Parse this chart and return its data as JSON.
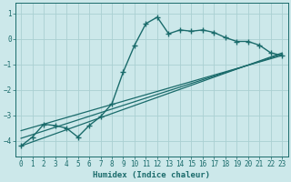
{
  "xlabel": "Humidex (Indice chaleur)",
  "bg_color": "#cce8ea",
  "line_color": "#1a6b6b",
  "grid_color": "#aad0d2",
  "xlim": [
    -0.5,
    23.5
  ],
  "ylim": [
    -4.6,
    1.4
  ],
  "yticks": [
    -4,
    -3,
    -2,
    -1,
    0,
    1
  ],
  "xticks": [
    0,
    1,
    2,
    3,
    4,
    5,
    6,
    7,
    8,
    9,
    10,
    11,
    12,
    13,
    14,
    15,
    16,
    17,
    18,
    19,
    20,
    21,
    22,
    23
  ],
  "curve_x": [
    0,
    1,
    2,
    3,
    4,
    5,
    6,
    7,
    8,
    9,
    10,
    11,
    12,
    13,
    14,
    15,
    16,
    17,
    18,
    19,
    20,
    21,
    22,
    23
  ],
  "curve_y": [
    -4.2,
    -3.85,
    -3.35,
    -3.4,
    -3.5,
    -3.85,
    -3.4,
    -3.05,
    -2.55,
    -1.3,
    -0.25,
    0.6,
    0.85,
    0.2,
    0.35,
    0.3,
    0.35,
    0.25,
    0.05,
    -0.1,
    -0.1,
    -0.25,
    -0.55,
    -0.65
  ],
  "line1_x": [
    0,
    23
  ],
  "line1_y": [
    -4.2,
    -0.55
  ],
  "line2_x": [
    0,
    23
  ],
  "line2_y": [
    -3.6,
    -0.65
  ],
  "line3_x": [
    0,
    23
  ],
  "line3_y": [
    -3.9,
    -0.6
  ]
}
